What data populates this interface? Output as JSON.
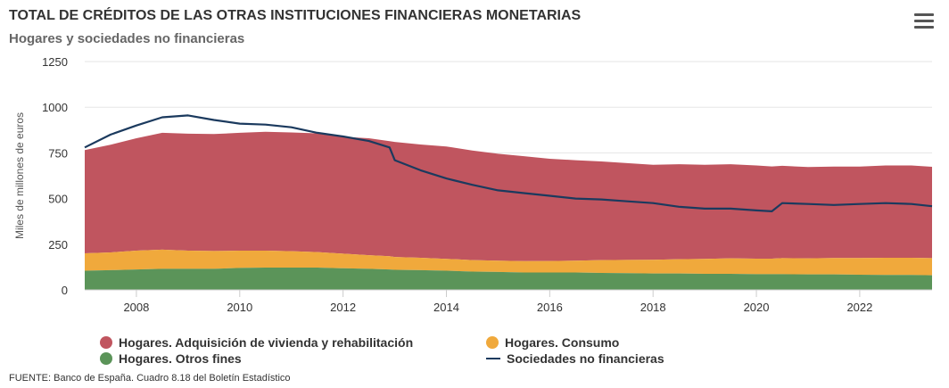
{
  "header": {
    "title": "TOTAL DE CRÉDITOS DE LAS OTRAS INSTITUCIONES FINANCIERAS MONETARIAS",
    "subtitle": "Hogares y sociedades no financieras",
    "menu_icon": "hamburger-menu-icon"
  },
  "footer": {
    "source": "FUENTE: Banco de España. Cuadro 8.18 del Boletín Estadístico"
  },
  "colors": {
    "vivienda": "#c0555f",
    "consumo": "#f0a93c",
    "otros": "#5b9459",
    "sociedades": "#1b3a5e"
  },
  "chart_data": {
    "type": "area",
    "stacked": true,
    "ylabel": "Miles de millones de euros",
    "xlabel": "",
    "ylim": [
      0,
      1250
    ],
    "xlim": [
      2007.0,
      2023.4
    ],
    "y_ticks": [
      "0",
      "250",
      "500",
      "750",
      "1000",
      "1250"
    ],
    "x_ticks": [
      "2008",
      "2010",
      "2012",
      "2014",
      "2016",
      "2018",
      "2020",
      "2022"
    ],
    "grid": true,
    "legend_position": "bottom",
    "x": [
      2007.0,
      2007.5,
      2008.0,
      2008.5,
      2009.0,
      2009.5,
      2010.0,
      2010.5,
      2011.0,
      2011.5,
      2012.0,
      2012.5,
      2012.9,
      2013.0,
      2013.5,
      2014.0,
      2014.5,
      2015.0,
      2015.5,
      2016.0,
      2016.5,
      2017.0,
      2017.5,
      2018.0,
      2018.5,
      2019.0,
      2019.5,
      2020.0,
      2020.3,
      2020.5,
      2021.0,
      2021.5,
      2022.0,
      2022.5,
      2023.0,
      2023.4
    ],
    "series": [
      {
        "name": "Hogares. Adquisición de vivienda y rehabilitación",
        "type": "area",
        "values": [
          565,
          590,
          615,
          640,
          640,
          640,
          645,
          650,
          650,
          650,
          640,
          640,
          630,
          630,
          620,
          615,
          600,
          585,
          575,
          560,
          550,
          540,
          530,
          520,
          520,
          515,
          515,
          510,
          505,
          505,
          500,
          500,
          500,
          505,
          505,
          500
        ]
      },
      {
        "name": "Hogares. Consumo",
        "type": "area",
        "values": [
          95,
          97,
          103,
          105,
          100,
          98,
          95,
          93,
          90,
          85,
          80,
          75,
          72,
          70,
          68,
          65,
          63,
          62,
          62,
          63,
          65,
          70,
          72,
          75,
          78,
          82,
          85,
          85,
          85,
          88,
          88,
          90,
          92,
          94,
          94,
          94
        ]
      },
      {
        "name": "Hogares. Otros fines",
        "type": "area",
        "values": [
          105,
          108,
          112,
          115,
          115,
          115,
          120,
          122,
          122,
          122,
          118,
          115,
          112,
          110,
          108,
          105,
          100,
          98,
          95,
          95,
          95,
          93,
          92,
          90,
          90,
          88,
          88,
          86,
          86,
          86,
          85,
          85,
          83,
          82,
          82,
          80
        ]
      },
      {
        "name": "Sociedades no financieras",
        "type": "line",
        "values": [
          780,
          850,
          900,
          945,
          955,
          930,
          910,
          905,
          890,
          860,
          840,
          815,
          780,
          710,
          655,
          610,
          575,
          545,
          530,
          515,
          500,
          495,
          485,
          475,
          455,
          445,
          445,
          435,
          430,
          475,
          470,
          465,
          470,
          475,
          470,
          458
        ]
      }
    ]
  }
}
